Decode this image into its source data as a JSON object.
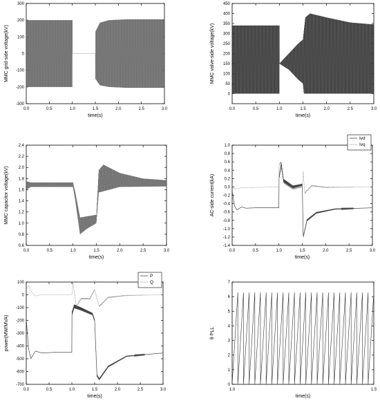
{
  "chart_data": [
    {
      "type": "line",
      "ylabel": "MMC grid-side voltage(kV)",
      "xlabel": "time(s)",
      "xlim": [
        0,
        3.0
      ],
      "ylim": [
        -300,
        300
      ],
      "xticks": [
        "0.0",
        "0.5",
        "1.0",
        "1.5",
        "2.0",
        "2.5",
        "3.0"
      ],
      "yticks": [
        "-300",
        "-200",
        "-100",
        "0",
        "100",
        "200",
        "300"
      ],
      "series": [
        {
          "envelope": [
            [
              0.0,
              200
            ],
            [
              1.0,
              200
            ],
            [
              1.0,
              0
            ],
            [
              1.5,
              0
            ],
            [
              1.5,
              130
            ],
            [
              1.6,
              185
            ],
            [
              1.8,
              200
            ],
            [
              2.2,
              205
            ],
            [
              3.0,
              205
            ]
          ],
          "floor": [
            [
              0.0,
              -200
            ],
            [
              1.0,
              -200
            ],
            [
              1.0,
              0
            ],
            [
              1.5,
              0
            ],
            [
              1.5,
              -150
            ],
            [
              1.6,
              -190
            ],
            [
              1.8,
              -200
            ],
            [
              2.2,
              -205
            ],
            [
              3.0,
              -205
            ]
          ]
        }
      ]
    },
    {
      "type": "line",
      "ylabel": "MMC valve-side voltage(kV)",
      "xlabel": "time(s)",
      "xlim": [
        0,
        3.0
      ],
      "ylim": [
        -50,
        450
      ],
      "xticks": [
        "0.0",
        "0.5",
        "1.0",
        "1.5",
        "2.0",
        "2.5",
        "3.0"
      ],
      "yticks": [
        "0",
        "50",
        "100",
        "150",
        "200",
        "250",
        "300",
        "350",
        "400",
        "450"
      ],
      "series": [
        {
          "envelope": [
            [
              0.0,
              340
            ],
            [
              1.0,
              340
            ],
            [
              1.0,
              150
            ],
            [
              1.2,
              200
            ],
            [
              1.4,
              250
            ],
            [
              1.5,
              270
            ],
            [
              1.55,
              380
            ],
            [
              1.65,
              400
            ],
            [
              2.0,
              380
            ],
            [
              2.5,
              355
            ],
            [
              3.0,
              345
            ]
          ],
          "floor": [
            [
              0.0,
              0
            ],
            [
              1.0,
              0
            ],
            [
              1.0,
              150
            ],
            [
              1.2,
              120
            ],
            [
              1.4,
              70
            ],
            [
              1.5,
              50
            ],
            [
              1.52,
              0
            ],
            [
              3.0,
              0
            ]
          ]
        }
      ]
    },
    {
      "type": "line",
      "ylabel": "MMC capacitor voltage(kV)",
      "xlabel": "time(s)",
      "xlim": [
        0,
        3.0
      ],
      "ylim": [
        0.6,
        2.4
      ],
      "xticks": [
        "0.0",
        "0.5",
        "1.0",
        "1.5",
        "2.0",
        "2.5",
        "3.0"
      ],
      "yticks": [
        "0.6",
        "0.8",
        "1.0",
        "1.2",
        "1.4",
        "1.6",
        "1.8",
        "2.0",
        "2.2",
        "2.4"
      ],
      "series": [
        {
          "envelope": [
            [
              0.0,
              1.75
            ],
            [
              0.1,
              1.73
            ],
            [
              1.0,
              1.73
            ],
            [
              1.05,
              1.55
            ],
            [
              1.15,
              1.1
            ],
            [
              1.5,
              1.15
            ],
            [
              1.55,
              1.95
            ],
            [
              1.65,
              2.05
            ],
            [
              2.0,
              1.9
            ],
            [
              2.5,
              1.8
            ],
            [
              3.0,
              1.77
            ]
          ],
          "floor": [
            [
              0.0,
              1.6
            ],
            [
              0.1,
              1.65
            ],
            [
              1.0,
              1.65
            ],
            [
              1.05,
              1.4
            ],
            [
              1.15,
              0.8
            ],
            [
              1.3,
              0.9
            ],
            [
              1.5,
              1.0
            ],
            [
              1.55,
              1.55
            ],
            [
              2.0,
              1.65
            ],
            [
              3.0,
              1.66
            ]
          ]
        }
      ]
    },
    {
      "type": "line",
      "ylabel": "AC-side current(kA)",
      "xlabel": "time(s)",
      "xlim": [
        0,
        3.0
      ],
      "ylim": [
        -1.4,
        1.0
      ],
      "xticks": [
        "0.0",
        "0.5",
        "1.0",
        "1.5",
        "2.0",
        "2.5",
        "3.0"
      ],
      "yticks": [
        "-1.4",
        "-1.2",
        "-1.0",
        "-0.8",
        "-0.6",
        "-0.4",
        "-0.2",
        "0.0",
        "0.2",
        "0.4",
        "0.6",
        "0.8",
        "1.0"
      ],
      "legend": {
        "entries": [
          "Ivd",
          "Ivq"
        ],
        "position": "top-right"
      },
      "series": [
        {
          "name": "Ivd",
          "values": [
            [
              0.0,
              -0.1
            ],
            [
              0.05,
              -0.45
            ],
            [
              0.1,
              -0.55
            ],
            [
              0.2,
              -0.48
            ],
            [
              0.3,
              -0.51
            ],
            [
              0.5,
              -0.5
            ],
            [
              1.0,
              -0.5
            ],
            [
              1.0,
              0.2
            ],
            [
              1.05,
              0.55
            ],
            [
              1.1,
              0.15
            ],
            [
              1.3,
              0.0
            ],
            [
              1.5,
              0.05
            ],
            [
              1.52,
              -1.2
            ],
            [
              1.6,
              -0.8
            ],
            [
              1.8,
              -0.62
            ],
            [
              2.2,
              -0.53
            ],
            [
              3.0,
              -0.5
            ]
          ]
        },
        {
          "name": "Ivq",
          "values": [
            [
              0.0,
              0.05
            ],
            [
              0.05,
              -0.05
            ],
            [
              0.2,
              -0.02
            ],
            [
              1.0,
              0.0
            ],
            [
              1.0,
              0.5
            ],
            [
              1.03,
              0.6
            ],
            [
              1.1,
              0.1
            ],
            [
              1.3,
              -0.05
            ],
            [
              1.5,
              0.0
            ],
            [
              1.52,
              0.4
            ],
            [
              1.55,
              -0.15
            ],
            [
              1.7,
              0.03
            ],
            [
              2.0,
              -0.01
            ],
            [
              3.0,
              0.0
            ]
          ]
        }
      ]
    },
    {
      "type": "line",
      "ylabel": "power(MW/MVA)",
      "xlabel": "time(s)",
      "xlim": [
        0,
        3.0
      ],
      "ylim": [
        -700,
        100
      ],
      "xticks": [
        "0.0",
        "0.5",
        "1.0",
        "1.5",
        "2.0",
        "2.5",
        "3.0"
      ],
      "yticks": [
        "-700",
        "-600",
        "-500",
        "-400",
        "-300",
        "-200",
        "-100",
        "0",
        "100"
      ],
      "legend": {
        "entries": [
          "P",
          "Q"
        ],
        "position": "top-right"
      },
      "series": [
        {
          "name": "P",
          "values": [
            [
              0.0,
              -190
            ],
            [
              0.05,
              -420
            ],
            [
              0.1,
              -500
            ],
            [
              0.2,
              -440
            ],
            [
              0.35,
              -455
            ],
            [
              0.6,
              -450
            ],
            [
              1.0,
              -450
            ],
            [
              1.0,
              -150
            ],
            [
              1.05,
              -90
            ],
            [
              1.2,
              -110
            ],
            [
              1.45,
              -150
            ],
            [
              1.5,
              -200
            ],
            [
              1.55,
              -630
            ],
            [
              1.6,
              -660
            ],
            [
              1.8,
              -560
            ],
            [
              2.2,
              -480
            ],
            [
              3.0,
              -455
            ]
          ]
        },
        {
          "name": "Q",
          "values": [
            [
              0.0,
              40
            ],
            [
              0.05,
              70
            ],
            [
              0.1,
              30
            ],
            [
              0.2,
              -10
            ],
            [
              0.3,
              0
            ],
            [
              1.0,
              0
            ],
            [
              1.02,
              100
            ],
            [
              1.1,
              -90
            ],
            [
              1.2,
              -30
            ],
            [
              1.4,
              -30
            ],
            [
              1.5,
              40
            ],
            [
              1.55,
              -30
            ],
            [
              1.6,
              -90
            ],
            [
              1.8,
              -20
            ],
            [
              2.2,
              -5
            ],
            [
              3.0,
              0
            ]
          ]
        }
      ]
    },
    {
      "type": "line",
      "ylabel": "θ PLL",
      "xlabel": "time(s)",
      "xlim": [
        1.0,
        1.5
      ],
      "ylim": [
        0,
        7
      ],
      "xticks": [
        "1.0",
        "1.5"
      ],
      "yticks": [
        "0",
        "1",
        "2",
        "3",
        "4",
        "5",
        "6",
        "7"
      ],
      "series": [
        {
          "name": "θ PLL",
          "waveform": "sawtooth",
          "period": 0.02,
          "min": 0,
          "max": 6.2832
        }
      ]
    }
  ]
}
